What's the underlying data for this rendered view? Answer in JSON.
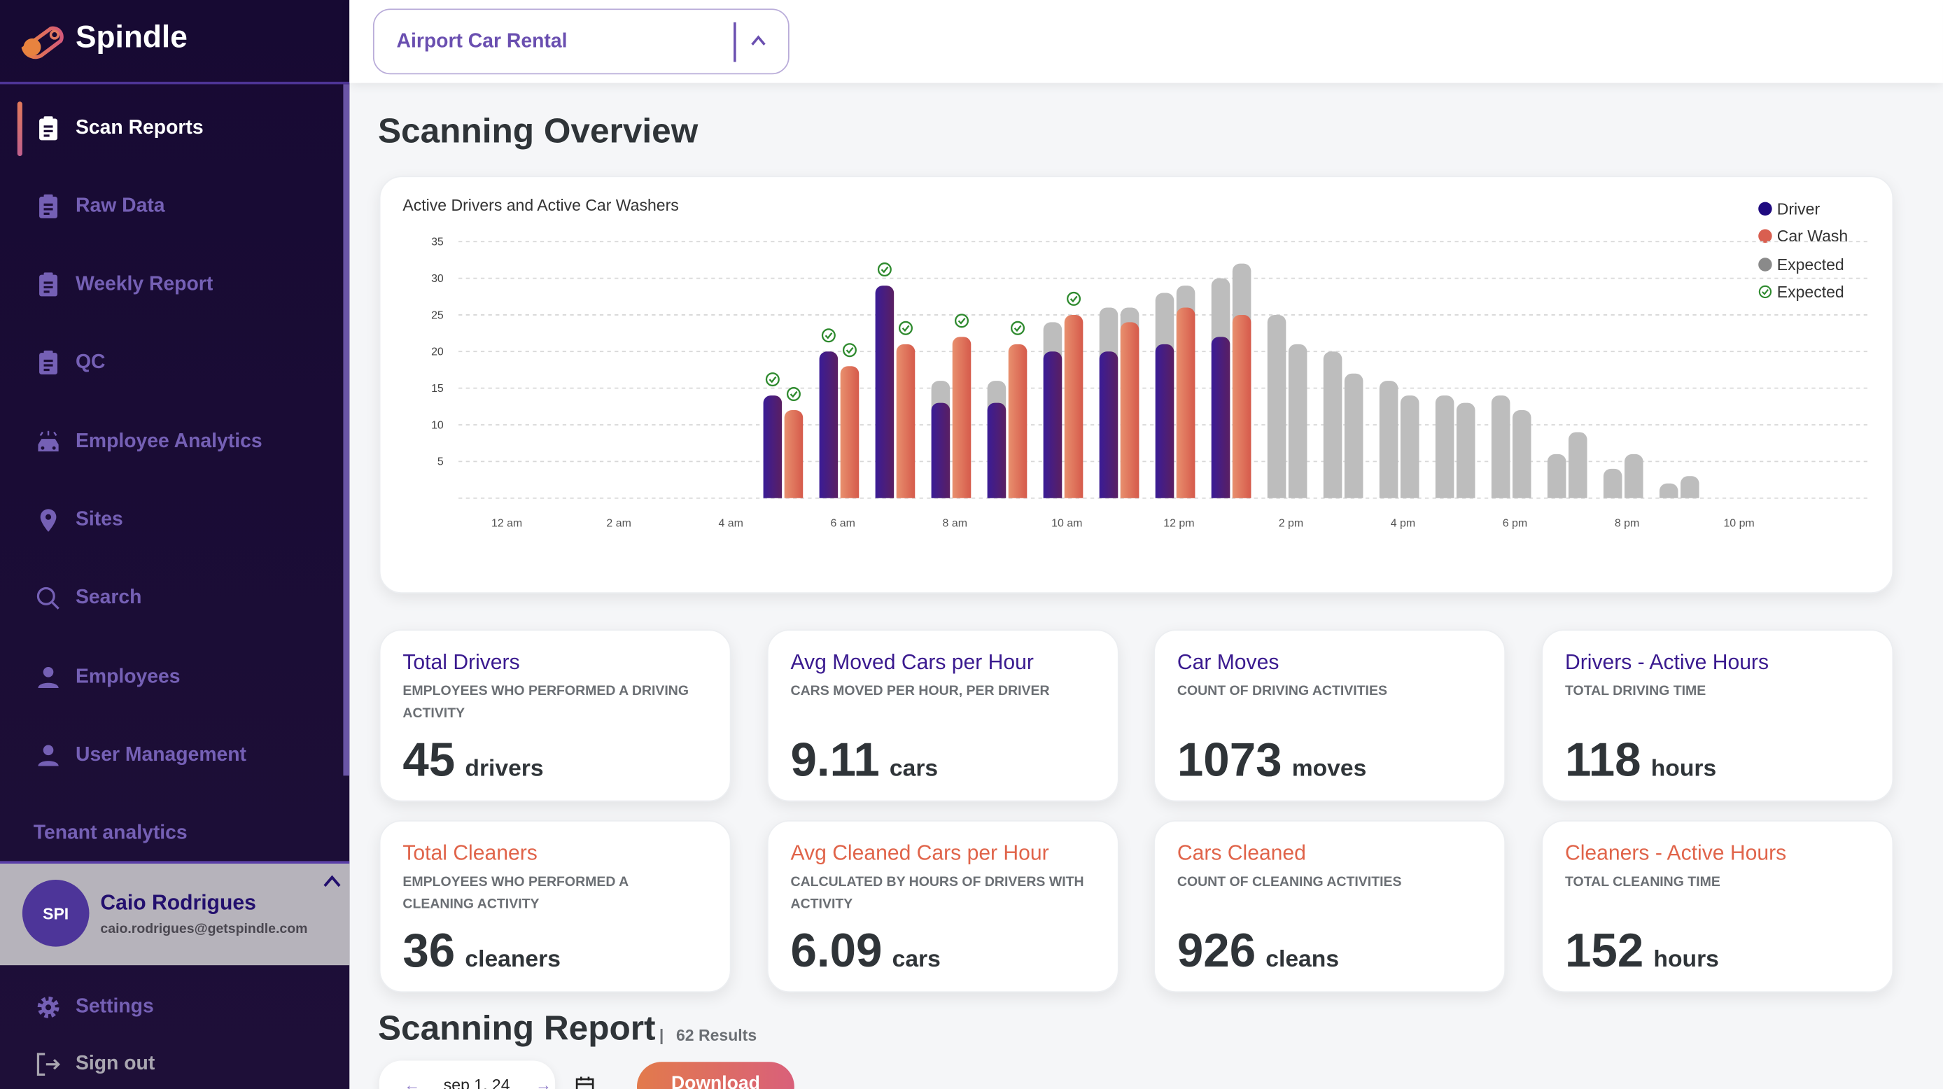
{
  "app": {
    "name": "Spindle"
  },
  "sidebar": {
    "items": [
      {
        "label": "Scan Reports",
        "icon": "clipboard-icon",
        "active": true
      },
      {
        "label": "Raw Data",
        "icon": "clipboard-icon"
      },
      {
        "label": "Weekly Report",
        "icon": "clipboard-icon"
      },
      {
        "label": "QC",
        "icon": "clipboard-icon"
      },
      {
        "label": "Employee Analytics",
        "icon": "car-wash-icon"
      },
      {
        "label": "Sites",
        "icon": "map-pin-icon"
      },
      {
        "label": "Search",
        "icon": "search-icon"
      },
      {
        "label": "Employees",
        "icon": "person-icon"
      },
      {
        "label": "User Management",
        "icon": "person-icon"
      }
    ],
    "tenant_analytics": "Tenant analytics",
    "user": {
      "initials": "SPI",
      "name": "Caio Rodrigues",
      "email": "caio.rodrigues@getspindle.com"
    },
    "settings": "Settings",
    "sign_out": "Sign out"
  },
  "header": {
    "site_select": "Airport Car Rental"
  },
  "overview": {
    "title": "Scanning Overview"
  },
  "chart_data": {
    "type": "bar",
    "title": "Active Drivers and Active Car Washers",
    "ylim": [
      0,
      35
    ],
    "yticks": [
      5,
      10,
      15,
      20,
      25,
      30,
      35
    ],
    "xtick_labels": [
      "12 am",
      "2 am",
      "4 am",
      "6 am",
      "8 am",
      "10 am",
      "12 pm",
      "2 pm",
      "4 pm",
      "6 pm",
      "8 pm",
      "10 pm"
    ],
    "grid": true,
    "legend_position": "top-right",
    "legend": [
      {
        "label": "Driver",
        "color": "#1f0a80"
      },
      {
        "label": "Car Wash",
        "color": "#d95f50"
      },
      {
        "label": "Expected",
        "color": "#8a8a8a"
      },
      {
        "label": "Expected",
        "marker": "check-circle",
        "color": "#2e8a2e"
      }
    ],
    "hours": [
      0,
      1,
      2,
      3,
      4,
      5,
      6,
      7,
      8,
      9,
      10,
      11,
      12,
      13,
      14,
      15,
      16,
      17,
      18,
      19,
      20,
      21,
      22,
      23
    ],
    "series": [
      {
        "name": "Driver",
        "values": [
          null,
          null,
          null,
          null,
          null,
          14,
          20,
          29,
          13,
          13,
          20,
          20,
          21,
          22,
          null,
          null,
          null,
          null,
          null,
          null,
          null,
          null,
          null,
          null
        ],
        "expected": [
          null,
          null,
          null,
          null,
          null,
          null,
          null,
          null,
          16,
          16,
          24,
          26,
          28,
          30,
          25,
          20,
          16,
          14,
          14,
          6,
          4,
          2,
          null,
          null
        ],
        "met_expected": [
          5,
          6,
          7
        ]
      },
      {
        "name": "Car Wash",
        "values": [
          null,
          null,
          null,
          null,
          null,
          12,
          18,
          21,
          22,
          21,
          25,
          24,
          26,
          25,
          null,
          null,
          null,
          null,
          null,
          null,
          null,
          null,
          null,
          null
        ],
        "expected": [
          null,
          null,
          null,
          null,
          null,
          null,
          null,
          null,
          null,
          null,
          null,
          26,
          29,
          32,
          21,
          17,
          14,
          13,
          12,
          9,
          6,
          3,
          null,
          null
        ],
        "met_expected": [
          5,
          6,
          7,
          8,
          9,
          10
        ]
      }
    ]
  },
  "kpis": [
    {
      "title": "Total Drivers",
      "subtitle": "Employees who performed a driving activity",
      "value": "45",
      "unit": "drivers",
      "kind": "driver"
    },
    {
      "title": "Avg Moved Cars per Hour",
      "subtitle": "Cars moved per hour, per driver",
      "value": "9.11",
      "unit": "cars",
      "kind": "driver"
    },
    {
      "title": "Car Moves",
      "subtitle": "Count of driving activities",
      "value": "1073",
      "unit": "moves",
      "kind": "driver"
    },
    {
      "title": "Drivers - Active Hours",
      "subtitle": "Total driving time",
      "value": "118",
      "unit": "hours",
      "kind": "driver"
    },
    {
      "title": "Total Cleaners",
      "subtitle": "Employees who performed a cleaning activity",
      "value": "36",
      "unit": "cleaners",
      "kind": "cleaner"
    },
    {
      "title": "Avg Cleaned Cars per Hour",
      "subtitle": "Calculated by hours of drivers with activity",
      "value": "6.09",
      "unit": "cars",
      "kind": "cleaner"
    },
    {
      "title": "Cars Cleaned",
      "subtitle": "Count of cleaning activities",
      "value": "926",
      "unit": "cleans",
      "kind": "cleaner"
    },
    {
      "title": "Cleaners - Active Hours",
      "subtitle": "Total cleaning time",
      "value": "152",
      "unit": "hours",
      "kind": "cleaner"
    }
  ],
  "report": {
    "title": "Scanning Report",
    "separator": "|",
    "results": "62 Results",
    "date": "sep 1, 24",
    "download": "Download"
  }
}
